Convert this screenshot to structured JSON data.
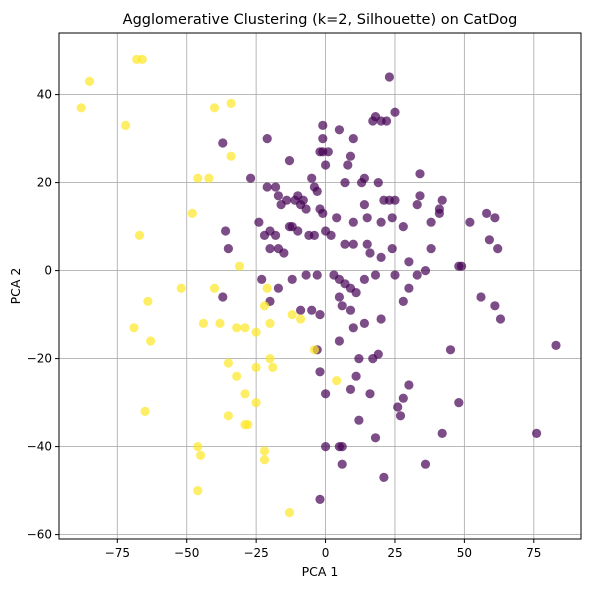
{
  "chart_data": {
    "type": "scatter",
    "title": "Agglomerative Clustering (k=2, Silhouette) on CatDog",
    "xlabel": "PCA 1",
    "ylabel": "PCA 2",
    "xlim": [
      -96,
      92
    ],
    "ylim": [
      -61,
      54
    ],
    "xticks": [
      -75,
      -50,
      -25,
      0,
      25,
      50,
      75
    ],
    "yticks": [
      -60,
      -40,
      -20,
      0,
      20,
      40
    ],
    "xtick_labels": [
      "−75",
      "−50",
      "−25",
      "0",
      "25",
      "50",
      "75"
    ],
    "ytick_labels": [
      "−60",
      "−40",
      "−20",
      "0",
      "20",
      "40"
    ],
    "grid": true,
    "point_alpha": 0.7,
    "series": [
      {
        "color": "#440154",
        "points": [
          [
            23,
            44
          ],
          [
            25,
            36
          ],
          [
            18,
            35
          ],
          [
            20,
            34
          ],
          [
            17,
            34
          ],
          [
            22,
            34
          ],
          [
            10,
            30
          ],
          [
            -1,
            33
          ],
          [
            5,
            32
          ],
          [
            -37,
            29
          ],
          [
            -21,
            30
          ],
          [
            -1,
            30
          ],
          [
            1,
            27
          ],
          [
            -1,
            27
          ],
          [
            -2,
            27
          ],
          [
            0,
            24
          ],
          [
            8,
            24
          ],
          [
            9,
            26
          ],
          [
            -13,
            25
          ],
          [
            -27,
            21
          ],
          [
            34,
            22
          ],
          [
            14,
            21
          ],
          [
            13,
            20
          ],
          [
            7,
            20
          ],
          [
            19,
            20
          ],
          [
            34,
            17
          ],
          [
            21,
            16
          ],
          [
            23,
            16
          ],
          [
            25,
            16
          ],
          [
            33,
            15
          ],
          [
            41,
            14
          ],
          [
            42,
            16
          ],
          [
            41,
            13
          ],
          [
            -21,
            19
          ],
          [
            -18,
            19
          ],
          [
            -17,
            17
          ],
          [
            -14,
            16
          ],
          [
            -16,
            15
          ],
          [
            -11,
            16
          ],
          [
            -8,
            16
          ],
          [
            -10,
            17
          ],
          [
            -3,
            18
          ],
          [
            -4,
            19
          ],
          [
            -5,
            21
          ],
          [
            -2,
            14
          ],
          [
            -1,
            13
          ],
          [
            -7,
            14
          ],
          [
            -9,
            15
          ],
          [
            -12,
            10
          ],
          [
            -13,
            10
          ],
          [
            -10,
            9
          ],
          [
            4,
            12
          ],
          [
            10,
            11
          ],
          [
            14,
            15
          ],
          [
            15,
            12
          ],
          [
            20,
            11
          ],
          [
            24,
            12
          ],
          [
            28,
            10
          ],
          [
            38,
            11
          ],
          [
            52,
            11
          ],
          [
            58,
            13
          ],
          [
            61,
            12
          ],
          [
            -36,
            9
          ],
          [
            -35,
            5
          ],
          [
            -24,
            11
          ],
          [
            -22,
            8
          ],
          [
            -20,
            9
          ],
          [
            -18,
            8
          ],
          [
            -20,
            5
          ],
          [
            -17,
            5
          ],
          [
            -15,
            4
          ],
          [
            -6,
            8
          ],
          [
            -4,
            8
          ],
          [
            0,
            9
          ],
          [
            2,
            8
          ],
          [
            7,
            6
          ],
          [
            10,
            6
          ],
          [
            15,
            6
          ],
          [
            16,
            4
          ],
          [
            20,
            3
          ],
          [
            24,
            5
          ],
          [
            30,
            2
          ],
          [
            38,
            5
          ],
          [
            59,
            7
          ],
          [
            62,
            5
          ],
          [
            48,
            1
          ],
          [
            -37,
            -6
          ],
          [
            -23,
            -2
          ],
          [
            -17,
            -4
          ],
          [
            -12,
            -2
          ],
          [
            -7,
            -1
          ],
          [
            -3,
            -1
          ],
          [
            3,
            -1
          ],
          [
            5,
            -2
          ],
          [
            7,
            -3
          ],
          [
            9,
            -4
          ],
          [
            11,
            -5
          ],
          [
            14,
            -2
          ],
          [
            18,
            -1
          ],
          [
            25,
            -1
          ],
          [
            30,
            -4
          ],
          [
            33,
            -1
          ],
          [
            36,
            0
          ],
          [
            49,
            1
          ],
          [
            -20,
            -7
          ],
          [
            -9,
            -9
          ],
          [
            -5,
            -9
          ],
          [
            -2,
            -10
          ],
          [
            5,
            -6
          ],
          [
            6,
            -8
          ],
          [
            9,
            -9
          ],
          [
            10,
            -13
          ],
          [
            14,
            -12
          ],
          [
            20,
            -11
          ],
          [
            28,
            -7
          ],
          [
            56,
            -6
          ],
          [
            61,
            -8
          ],
          [
            63,
            -11
          ],
          [
            83,
            -17
          ],
          [
            -3,
            -18
          ],
          [
            5,
            -16
          ],
          [
            12,
            -20
          ],
          [
            17,
            -20
          ],
          [
            19,
            -19
          ],
          [
            45,
            -18
          ],
          [
            -2,
            -23
          ],
          [
            11,
            -24
          ],
          [
            30,
            -26
          ],
          [
            9,
            -27
          ],
          [
            16,
            -28
          ],
          [
            28,
            -29
          ],
          [
            48,
            -30
          ],
          [
            0,
            -28
          ],
          [
            12,
            -34
          ],
          [
            26,
            -31
          ],
          [
            27,
            -33
          ],
          [
            42,
            -37
          ],
          [
            76,
            -37
          ],
          [
            18,
            -38
          ],
          [
            6,
            -40
          ],
          [
            5,
            -40
          ],
          [
            0,
            -40
          ],
          [
            6,
            -44
          ],
          [
            36,
            -44
          ],
          [
            21,
            -47
          ],
          [
            -2,
            -52
          ]
        ]
      },
      {
        "color": "#fde725",
        "points": [
          [
            -68,
            48
          ],
          [
            -66,
            48
          ],
          [
            -85,
            43
          ],
          [
            -88,
            37
          ],
          [
            -72,
            33
          ],
          [
            -40,
            37
          ],
          [
            -34,
            38
          ],
          [
            -34,
            26
          ],
          [
            -42,
            21
          ],
          [
            -46,
            21
          ],
          [
            -48,
            13
          ],
          [
            -67,
            8
          ],
          [
            -31,
            1
          ],
          [
            -64,
            -7
          ],
          [
            -52,
            -4
          ],
          [
            -40,
            -4
          ],
          [
            -21,
            -4
          ],
          [
            -22,
            -8
          ],
          [
            -44,
            -12
          ],
          [
            -38,
            -12
          ],
          [
            -69,
            -13
          ],
          [
            -32,
            -13
          ],
          [
            -29,
            -13
          ],
          [
            -25,
            -14
          ],
          [
            -20,
            -12
          ],
          [
            -12,
            -10
          ],
          [
            -9,
            -11
          ],
          [
            -63,
            -16
          ],
          [
            -4,
            -18
          ],
          [
            -35,
            -21
          ],
          [
            -25,
            -22
          ],
          [
            -19,
            -22
          ],
          [
            -20,
            -20
          ],
          [
            -32,
            -24
          ],
          [
            4,
            -25
          ],
          [
            -29,
            -28
          ],
          [
            -25,
            -30
          ],
          [
            -65,
            -32
          ],
          [
            -35,
            -33
          ],
          [
            -28,
            -35
          ],
          [
            -29,
            -35
          ],
          [
            -46,
            -40
          ],
          [
            -22,
            -41
          ],
          [
            -45,
            -42
          ],
          [
            -22,
            -43
          ],
          [
            -46,
            -50
          ],
          [
            -13,
            -55
          ]
        ]
      }
    ]
  }
}
